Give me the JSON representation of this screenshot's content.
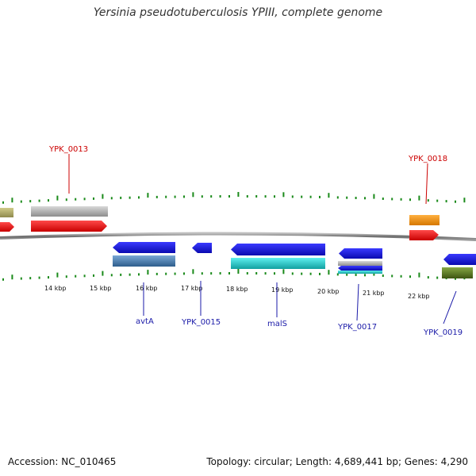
{
  "title": "Yersinia pseudotuberculosis YPIII, complete genome",
  "footer": {
    "accession": "Accession: NC_010465",
    "topology": "Topology: circular; Length: 4,689,441 bp; Genes: 4,290"
  },
  "scale_ticks": [
    "14 kbp",
    "15 kbp",
    "16 kbp",
    "17 kbp",
    "18 kbp",
    "19 kbp",
    "20 kbp",
    "21 kbp",
    "22 kbp"
  ],
  "colors": {
    "red": "#e60000",
    "gray": "#b8b8b8",
    "olive": "#b5b06e",
    "orange": "#f29418",
    "blue": "#1414e0",
    "steelblue": "#4e86b8",
    "cyan": "#1ec8c8",
    "green_dark": "#5d7a24",
    "tick": "#1a8a1a",
    "label_red": "#cc0000",
    "label_blue": "#1a1aa8"
  },
  "gene_labels": {
    "YPK_0013": "YPK_0013",
    "YPK_0018": "YPK_0018",
    "avtA": "avtA",
    "YPK_0015": "YPK_0015",
    "malS": "malS",
    "YPK_0017": "YPK_0017",
    "YPK_0019": "YPK_0019"
  }
}
